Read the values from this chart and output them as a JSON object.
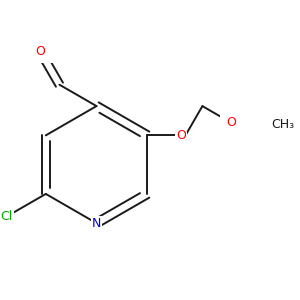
{
  "background_color": "#ffffff",
  "bond_color": "#1a1a1a",
  "atom_colors": {
    "O": "#ff0000",
    "N": "#0000cc",
    "Cl": "#00aa00",
    "C": "#1a1a1a"
  },
  "figsize": [
    3.0,
    3.0
  ],
  "dpi": 100,
  "lw": 1.4,
  "fontsize": 9.0
}
